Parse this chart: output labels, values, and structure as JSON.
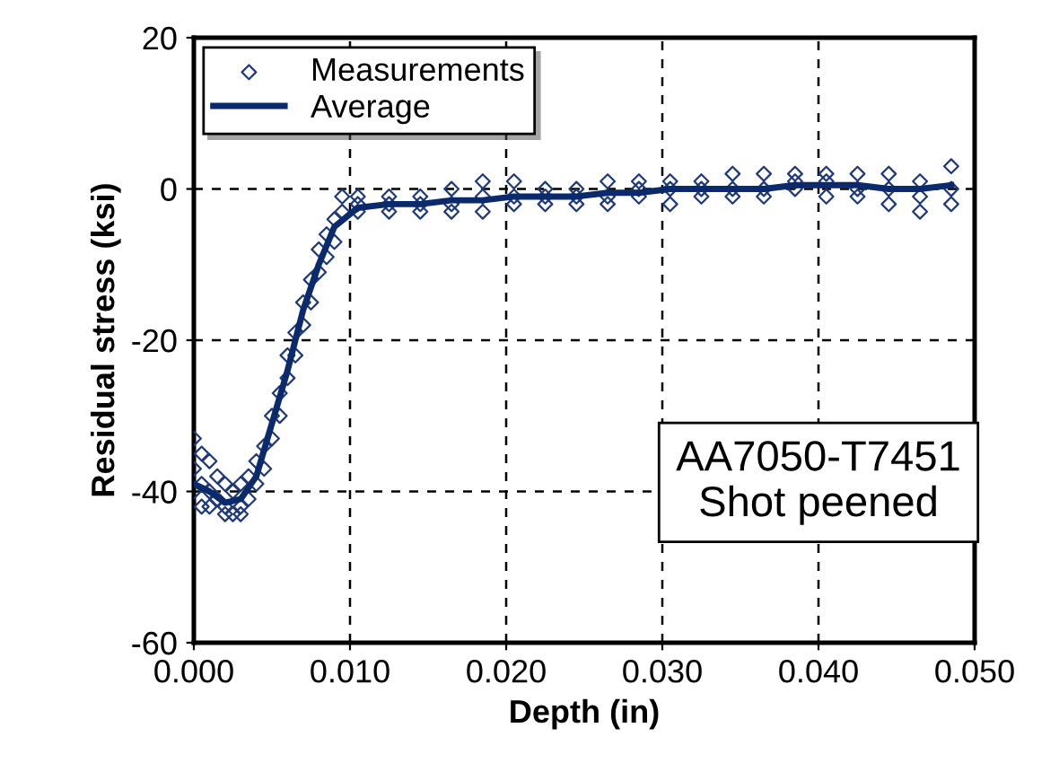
{
  "chart_data": {
    "type": "scatter",
    "xlabel": "Depth (in)",
    "ylabel": "Residual stress (ksi)",
    "xlim": [
      0,
      0.05
    ],
    "ylim": [
      -60,
      20
    ],
    "xticks": [
      {
        "value": 0,
        "label": "0.000"
      },
      {
        "value": 0.01,
        "label": "0.010"
      },
      {
        "value": 0.02,
        "label": "0.020"
      },
      {
        "value": 0.03,
        "label": "0.030"
      },
      {
        "value": 0.04,
        "label": "0.040"
      },
      {
        "value": 0.05,
        "label": "0.050"
      }
    ],
    "yticks": [
      -60,
      -40,
      -20,
      0,
      20
    ],
    "grid": true,
    "legend": "top left",
    "annotations": [
      "AA7050-T7451\nShot peened"
    ],
    "series": [
      {
        "name": "Measurements",
        "marker": "diamond",
        "color": "#1f3a7a",
        "x": [
          0.0,
          0.0,
          0.0,
          0.0005,
          0.0005,
          0.0005,
          0.001,
          0.001,
          0.001,
          0.0015,
          0.0015,
          0.002,
          0.002,
          0.002,
          0.0025,
          0.0025,
          0.003,
          0.003,
          0.003,
          0.0035,
          0.0035,
          0.004,
          0.004,
          0.0045,
          0.0045,
          0.005,
          0.005,
          0.0055,
          0.0055,
          0.006,
          0.006,
          0.0065,
          0.0065,
          0.007,
          0.007,
          0.0075,
          0.0075,
          0.008,
          0.008,
          0.0085,
          0.0085,
          0.009,
          0.009,
          0.0095,
          0.0095,
          0.0105,
          0.0105,
          0.0105,
          0.0125,
          0.0125,
          0.0125,
          0.0145,
          0.0145,
          0.0145,
          0.0165,
          0.0165,
          0.0165,
          0.0185,
          0.0185,
          0.0185,
          0.0205,
          0.0205,
          0.0205,
          0.0225,
          0.0225,
          0.0225,
          0.0245,
          0.0245,
          0.0245,
          0.0265,
          0.0265,
          0.0265,
          0.0285,
          0.0285,
          0.0285,
          0.0305,
          0.0305,
          0.0305,
          0.0325,
          0.0325,
          0.0325,
          0.0345,
          0.0345,
          0.0345,
          0.0365,
          0.0365,
          0.0365,
          0.0385,
          0.0385,
          0.0385,
          0.0405,
          0.0405,
          0.0405,
          0.0425,
          0.0425,
          0.0425,
          0.0445,
          0.0445,
          0.0445,
          0.0465,
          0.0465,
          0.0465,
          0.0485,
          0.0485,
          0.0485
        ],
        "values": [
          -33,
          -37,
          -40,
          -35,
          -39,
          -42,
          -36,
          -40,
          -42,
          -38,
          -41,
          -39,
          -42,
          -43,
          -40,
          -43,
          -39,
          -42,
          -43,
          -38,
          -41,
          -36,
          -39,
          -34,
          -37,
          -30,
          -33,
          -27,
          -30,
          -22,
          -25,
          -19,
          -22,
          -15,
          -18,
          -12,
          -15,
          -8,
          -11,
          -6,
          -9,
          -4,
          -7,
          -1,
          -3,
          -1,
          -2,
          -3,
          -1,
          -2,
          -3,
          -1,
          -2,
          -3,
          0,
          -2,
          -3,
          1,
          -1,
          -3,
          1,
          -1,
          -2,
          0,
          -1,
          -2,
          0,
          -1,
          -2,
          1,
          -1,
          -2,
          1,
          0,
          -1,
          1,
          0,
          -2,
          1,
          0,
          -1,
          2,
          0,
          -1,
          2,
          0,
          -1,
          2,
          1,
          0,
          2,
          1,
          -1,
          2,
          0,
          -1,
          2,
          0,
          -2,
          1,
          -1,
          -3,
          3,
          0,
          -2
        ]
      },
      {
        "name": "Average",
        "type": "line",
        "marker": "none",
        "line_style": "solid",
        "color": "#0b2a6b",
        "x": [
          0.0,
          0.001,
          0.002,
          0.003,
          0.004,
          0.005,
          0.006,
          0.007,
          0.008,
          0.009,
          0.0105,
          0.0125,
          0.0145,
          0.0165,
          0.0185,
          0.0205,
          0.0225,
          0.0245,
          0.0265,
          0.0285,
          0.0305,
          0.0325,
          0.0345,
          0.0365,
          0.0385,
          0.0405,
          0.0425,
          0.0445,
          0.0465,
          0.0485
        ],
        "values": [
          -39,
          -40,
          -41.5,
          -41,
          -38,
          -31,
          -24,
          -16,
          -10,
          -5,
          -2.5,
          -2,
          -2,
          -1.5,
          -1.5,
          -1,
          -1,
          -1,
          -0.5,
          -0.5,
          0,
          0,
          0,
          0,
          0.5,
          0.5,
          0.5,
          0,
          0,
          0.5
        ]
      }
    ]
  }
}
